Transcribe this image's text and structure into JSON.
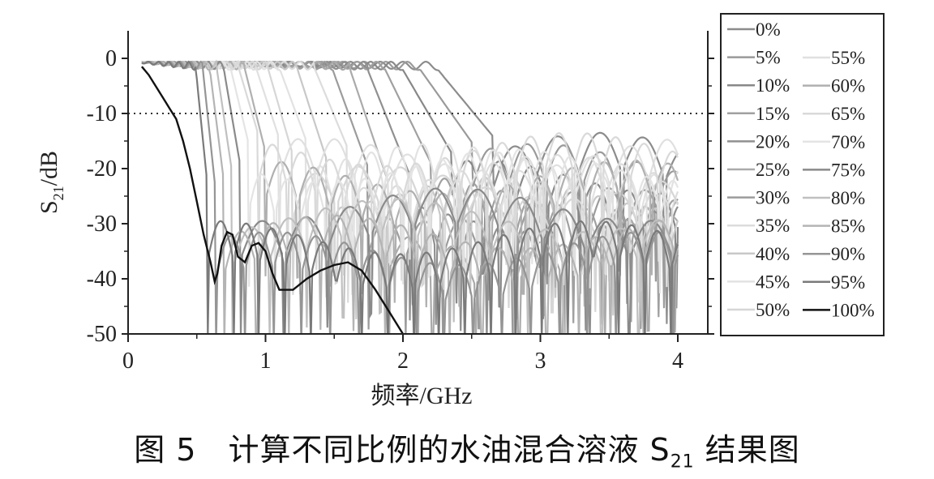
{
  "chart_data": {
    "type": "line",
    "xlabel": "频率/GHz",
    "ylabel_main": "S",
    "ylabel_sub": "21",
    "ylabel_tail": "/dB",
    "xlim": [
      0,
      4.2
    ],
    "ylim": [
      -50,
      5
    ],
    "x_ticks": [
      0,
      1,
      2,
      3,
      4
    ],
    "x_tick_labels": [
      "0",
      "1",
      "2",
      "3",
      "4"
    ],
    "y_ticks": [
      0,
      -10,
      -20,
      -30,
      -40,
      -50
    ],
    "y_tick_labels": [
      "0",
      "-10",
      "-20",
      "-30",
      "-40",
      "-50"
    ],
    "reference_line": {
      "y": -10,
      "style": "dotted"
    },
    "legend_placement": "right",
    "series": [
      {
        "name": "0%",
        "color": "#8c8c8c",
        "cutoff": 2.65,
        "floor": -20
      },
      {
        "name": "5%",
        "color": "#9a9a9a",
        "cutoff": 2.5,
        "floor": -22
      },
      {
        "name": "10%",
        "color": "#888888",
        "cutoff": 2.35,
        "floor": -25
      },
      {
        "name": "15%",
        "color": "#a0a0a0",
        "cutoff": 2.2,
        "floor": -28
      },
      {
        "name": "20%",
        "color": "#909090",
        "cutoff": 2.05,
        "floor": -32
      },
      {
        "name": "25%",
        "color": "#aaaaaa",
        "cutoff": 1.9,
        "floor": -35
      },
      {
        "name": "30%",
        "color": "#9c9c9c",
        "cutoff": 1.75,
        "floor": -30
      },
      {
        "name": "35%",
        "color": "#dcdcdc",
        "cutoff": 1.6,
        "floor": -24
      },
      {
        "name": "40%",
        "color": "#c8c8c8",
        "cutoff": 1.45,
        "floor": -28
      },
      {
        "name": "45%",
        "color": "#e2e2e2",
        "cutoff": 1.3,
        "floor": -22
      },
      {
        "name": "50%",
        "color": "#d6d6d6",
        "cutoff": 1.2,
        "floor": -26
      },
      {
        "name": "55%",
        "color": "#e0e0e0",
        "cutoff": 1.1,
        "floor": -21
      },
      {
        "name": "60%",
        "color": "#b0b0b0",
        "cutoff": 1.0,
        "floor": -25
      },
      {
        "name": "65%",
        "color": "#d9d9d9",
        "cutoff": 0.95,
        "floor": -20
      },
      {
        "name": "70%",
        "color": "#e4e4e4",
        "cutoff": 0.88,
        "floor": -23
      },
      {
        "name": "75%",
        "color": "#8a8a8a",
        "cutoff": 0.82,
        "floor": -30
      },
      {
        "name": "80%",
        "color": "#c0c0c0",
        "cutoff": 0.76,
        "floor": -32
      },
      {
        "name": "85%",
        "color": "#b4b4b4",
        "cutoff": 0.7,
        "floor": -35
      },
      {
        "name": "90%",
        "color": "#959595",
        "cutoff": 0.64,
        "floor": -38
      },
      {
        "name": "95%",
        "color": "#7a7a7a",
        "cutoff": 0.58,
        "floor": -36
      },
      {
        "name": "100%",
        "color": "#111111",
        "cutoff": 0.5,
        "floor": -50
      }
    ],
    "highlight_series": {
      "name": "100%",
      "x": [
        0.1,
        0.15,
        0.2,
        0.25,
        0.3,
        0.35,
        0.4,
        0.45,
        0.5,
        0.55,
        0.6,
        0.63,
        0.65,
        0.68,
        0.72,
        0.76,
        0.8,
        0.85,
        0.9,
        0.95,
        1.0,
        1.05,
        1.1,
        1.2,
        1.3,
        1.4,
        1.5,
        1.6,
        1.7,
        1.8,
        1.9,
        2.0
      ],
      "y": [
        -1.5,
        -3,
        -5,
        -7,
        -9,
        -11,
        -15,
        -20,
        -26,
        -32,
        -37,
        -40.5,
        -39,
        -34,
        -31.5,
        -32,
        -36,
        -37,
        -34,
        -33.5,
        -35,
        -39,
        -42,
        -42,
        -40,
        -38.5,
        -37.5,
        -37,
        -38.5,
        -42,
        -46,
        -50
      ]
    }
  },
  "caption": {
    "prefix": "图 5　计算不同比例的水油混合溶液 S",
    "sub": "21",
    "suffix": " 结果图"
  }
}
